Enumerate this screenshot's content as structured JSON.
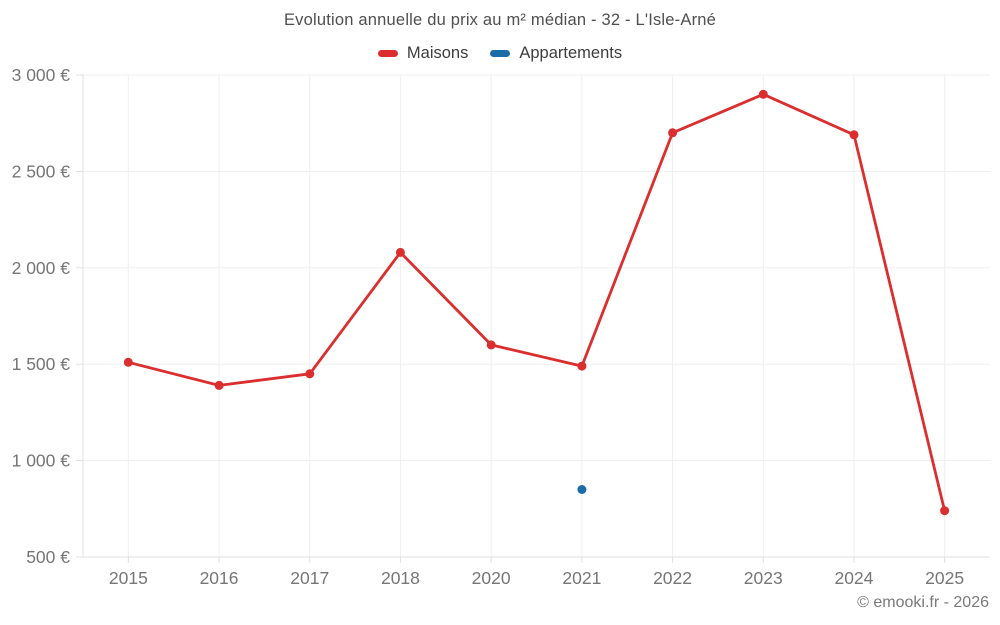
{
  "footer": {
    "copyright": "© emooki.fr - 2026"
  },
  "chart_data": {
    "type": "line",
    "title": "Evolution annuelle du prix au m² médian - 32 - L'Isle-Arné",
    "categories": [
      "2015",
      "2016",
      "2017",
      "2018",
      "2020",
      "2021",
      "2022",
      "2023",
      "2024",
      "2025"
    ],
    "series": [
      {
        "name": "Maisons",
        "color": "#db2e2e",
        "values": [
          1510,
          1390,
          1450,
          2080,
          1600,
          1490,
          2700,
          2900,
          2690,
          740
        ]
      },
      {
        "name": "Appartements",
        "color": "#1b6ca6",
        "values": [
          null,
          null,
          null,
          null,
          null,
          850,
          null,
          null,
          null,
          null
        ]
      }
    ],
    "xlabel": "",
    "ylabel": "",
    "ylim": [
      500,
      3000
    ],
    "y_ticks": [
      500,
      1000,
      1500,
      2000,
      2500,
      3000
    ],
    "y_tick_labels": [
      "500 €",
      "1 000 €",
      "1 500 €",
      "2 000 €",
      "2 500 €",
      "3 000 €"
    ],
    "y_tick_suffix": "€",
    "grid": true,
    "legend_position": "top",
    "marker": "circle"
  }
}
